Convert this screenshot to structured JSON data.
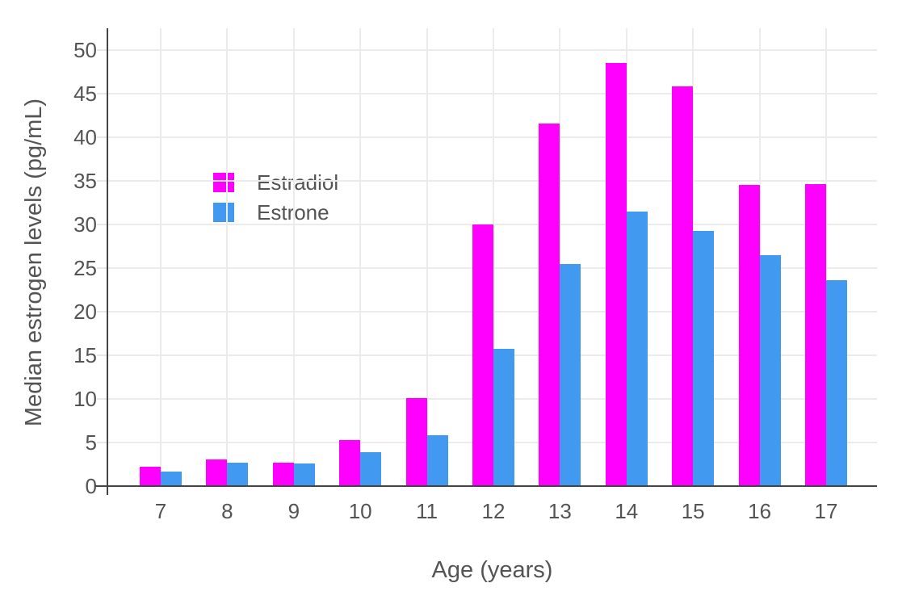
{
  "chart_data": {
    "type": "bar",
    "title": "",
    "xlabel": "Age (years)",
    "ylabel": "Median estrogen levels (pg/mL)",
    "categories": [
      "7",
      "8",
      "9",
      "10",
      "11",
      "12",
      "13",
      "14",
      "15",
      "16",
      "17"
    ],
    "series": [
      {
        "name": "Estradiol",
        "color": "#FF00FF",
        "values": [
          2.2,
          3.1,
          2.7,
          5.3,
          10.1,
          30.0,
          41.6,
          48.5,
          45.8,
          34.5,
          34.6
        ]
      },
      {
        "name": "Estrone",
        "color": "#4299F0",
        "values": [
          1.7,
          2.7,
          2.6,
          3.9,
          5.8,
          15.7,
          25.5,
          31.5,
          29.3,
          26.5,
          23.6
        ]
      }
    ],
    "yticks": [
      0,
      5,
      10,
      15,
      20,
      25,
      30,
      35,
      40,
      45,
      50
    ],
    "ylim": [
      0,
      52.5
    ],
    "grid": true,
    "legend_position": "inside-top-left"
  },
  "colors": {
    "bar_estradiol": "#FF00FF",
    "bar_estrone": "#4299F0",
    "gridline": "#ebebeb",
    "axis_line": "#444444",
    "text": "#545454",
    "background": "#ffffff"
  }
}
